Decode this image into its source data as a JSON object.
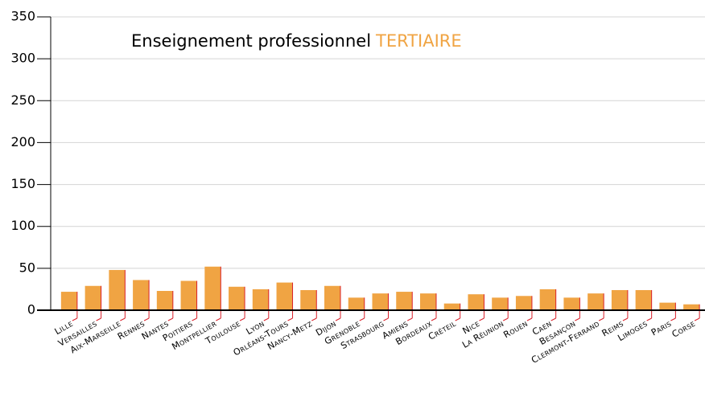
{
  "chart_data": {
    "type": "bar",
    "title": "Enseignement professionnel",
    "title_highlight": "TERTIAIRE",
    "categories": [
      "Lille",
      "Versailles",
      "Aix-Marseille",
      "Rennes",
      "Nantes",
      "Poitiers",
      "Montpellier",
      "Toulouse",
      "Lyon",
      "Orléans-Tours",
      "Nancy-Metz",
      "Dijon",
      "Grenoble",
      "Strasbourg",
      "Amiens",
      "Bordeaux",
      "Créteil",
      "Nice",
      "La Réunion",
      "Rouen",
      "Caen",
      "Besançon",
      "Clermont-Ferrand",
      "Reims",
      "Limoges",
      "Paris",
      "Corse"
    ],
    "values": [
      22,
      29,
      48,
      36,
      23,
      35,
      52,
      28,
      25,
      33,
      24,
      29,
      15,
      20,
      22,
      20,
      8,
      19,
      15,
      17,
      25,
      15,
      20,
      24,
      24,
      9,
      7
    ],
    "color": "#f0a443",
    "edge_color": "#d9202a",
    "title_highlight_color": "#f0a443",
    "ylim": [
      0,
      350
    ],
    "yticks": [
      0,
      50,
      100,
      150,
      200,
      250,
      300,
      350
    ],
    "grid": true
  }
}
